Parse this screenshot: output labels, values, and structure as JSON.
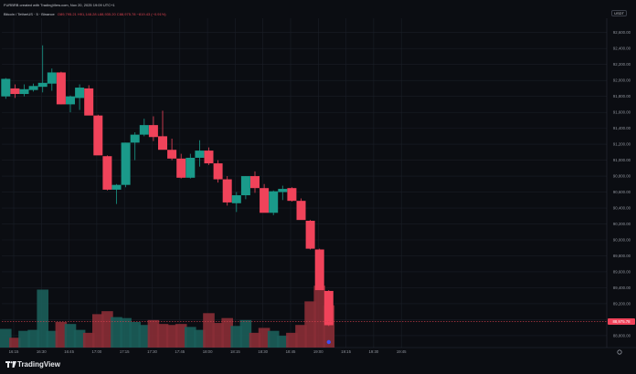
{
  "header": {
    "published_line": "FURBRB created with TradingView.com, Nov 20, 2025 19:09 UTC+1",
    "symbol_line": "Bitcoin / TetherUS · 5 · Binance",
    "ohlc_values": "O89,795.21 H91,148.28 L88,935.20 C88,975.78 −819.43 (−0.91%)",
    "currency": "USDT"
  },
  "footer": {
    "brand": "TradingView"
  },
  "colors": {
    "up": "#1a9a8a",
    "down": "#f0435a",
    "background": "#0b0d12",
    "grid": "#1a1e27",
    "text": "#8f939c",
    "price_badge": "#f0435a",
    "price_line": "#d9424f"
  },
  "chart_data": {
    "type": "candlestick",
    "y_axis_ticks": [
      "92,600.00",
      "92,400.00",
      "92,200.00",
      "92,000.00",
      "91,800.00",
      "91,600.00",
      "91,400.00",
      "91,200.00",
      "91,000.00",
      "90,800.00",
      "90,600.00",
      "90,400.00",
      "90,200.00",
      "90,000.00",
      "89,800.00",
      "89,600.00",
      "89,400.00",
      "89,200.00",
      "89,000.00",
      "88,800.00"
    ],
    "x_axis_ticks": [
      "16:15",
      "16:30",
      "16:45",
      "17:00",
      "17:15",
      "17:30",
      "17:45",
      "18:00",
      "18:15",
      "18:30",
      "18:45",
      "19:00",
      "19:15",
      "19:30",
      "19:45"
    ],
    "ylim": [
      88650,
      92780
    ],
    "last_price": "88,975.78",
    "candles": [
      {
        "o": 91800,
        "h": 92030,
        "l": 91770,
        "c": 92020
      },
      {
        "o": 91900,
        "h": 91950,
        "l": 91780,
        "c": 91830
      },
      {
        "o": 91830,
        "h": 91950,
        "l": 91800,
        "c": 91890
      },
      {
        "o": 91880,
        "h": 91960,
        "l": 91860,
        "c": 91930
      },
      {
        "o": 91920,
        "h": 92440,
        "l": 91850,
        "c": 91970
      },
      {
        "o": 91960,
        "h": 92150,
        "l": 91870,
        "c": 92100
      },
      {
        "o": 92100,
        "h": 92110,
        "l": 91700,
        "c": 91700
      },
      {
        "o": 91700,
        "h": 91810,
        "l": 91600,
        "c": 91800
      },
      {
        "o": 91780,
        "h": 91950,
        "l": 91630,
        "c": 91910
      },
      {
        "o": 91900,
        "h": 91940,
        "l": 91580,
        "c": 91560
      },
      {
        "o": 91560,
        "h": 91570,
        "l": 91080,
        "c": 91060
      },
      {
        "o": 91050,
        "h": 91060,
        "l": 90620,
        "c": 90630
      },
      {
        "o": 90630,
        "h": 90700,
        "l": 90450,
        "c": 90690
      },
      {
        "o": 90690,
        "h": 91220,
        "l": 90660,
        "c": 91220
      },
      {
        "o": 91220,
        "h": 91350,
        "l": 91000,
        "c": 91320
      },
      {
        "o": 91320,
        "h": 91520,
        "l": 91300,
        "c": 91440
      },
      {
        "o": 91440,
        "h": 91550,
        "l": 91240,
        "c": 91290
      },
      {
        "o": 91300,
        "h": 91620,
        "l": 91150,
        "c": 91130
      },
      {
        "o": 91130,
        "h": 91270,
        "l": 91000,
        "c": 91020
      },
      {
        "o": 91020,
        "h": 91080,
        "l": 90770,
        "c": 90780
      },
      {
        "o": 90780,
        "h": 91080,
        "l": 90770,
        "c": 91030
      },
      {
        "o": 91030,
        "h": 91250,
        "l": 90920,
        "c": 91120
      },
      {
        "o": 91120,
        "h": 91160,
        "l": 90940,
        "c": 90960
      },
      {
        "o": 90960,
        "h": 91000,
        "l": 90720,
        "c": 90760
      },
      {
        "o": 90760,
        "h": 90800,
        "l": 90430,
        "c": 90470
      },
      {
        "o": 90460,
        "h": 90600,
        "l": 90350,
        "c": 90560
      },
      {
        "o": 90560,
        "h": 90800,
        "l": 90510,
        "c": 90800
      },
      {
        "o": 90800,
        "h": 90860,
        "l": 90590,
        "c": 90650
      },
      {
        "o": 90650,
        "h": 90700,
        "l": 90380,
        "c": 90340
      },
      {
        "o": 90340,
        "h": 90620,
        "l": 90310,
        "c": 90610
      },
      {
        "o": 90600,
        "h": 90680,
        "l": 90500,
        "c": 90640
      },
      {
        "o": 90650,
        "h": 90660,
        "l": 90480,
        "c": 90490
      },
      {
        "o": 90490,
        "h": 90520,
        "l": 90260,
        "c": 90250
      },
      {
        "o": 90240,
        "h": 90250,
        "l": 89880,
        "c": 89890
      },
      {
        "o": 89880,
        "h": 89890,
        "l": 89370,
        "c": 89370
      },
      {
        "o": 89360,
        "h": 89370,
        "l": 88920,
        "c": 88930
      }
    ],
    "volumes": [
      0.19,
      0.1,
      0.17,
      0.18,
      0.59,
      0.17,
      0.26,
      0.24,
      0.18,
      0.15,
      0.34,
      0.37,
      0.31,
      0.3,
      0.26,
      0.23,
      0.28,
      0.24,
      0.23,
      0.24,
      0.21,
      0.18,
      0.35,
      0.25,
      0.3,
      0.22,
      0.28,
      0.15,
      0.2,
      0.17,
      0.12,
      0.15,
      0.23,
      0.47,
      0.63,
      0.43
    ],
    "volume_max": 0.65
  }
}
